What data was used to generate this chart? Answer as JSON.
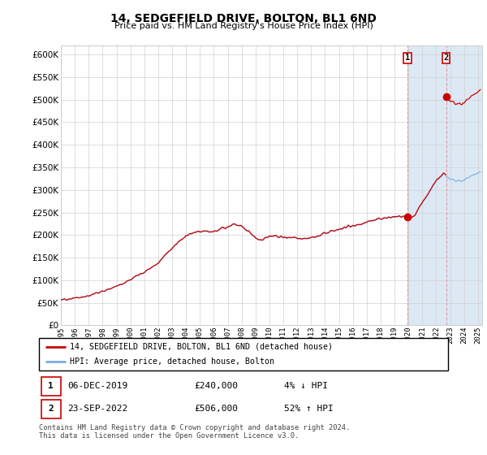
{
  "title": "14, SEDGEFIELD DRIVE, BOLTON, BL1 6ND",
  "subtitle": "Price paid vs. HM Land Registry's House Price Index (HPI)",
  "ylim": [
    0,
    620000
  ],
  "yticks": [
    0,
    50000,
    100000,
    150000,
    200000,
    250000,
    300000,
    350000,
    400000,
    450000,
    500000,
    550000,
    600000
  ],
  "xlim_start": 1995.5,
  "xlim_end": 2025.3,
  "xtick_years": [
    1995,
    1996,
    1997,
    1998,
    1999,
    2000,
    2001,
    2002,
    2003,
    2004,
    2005,
    2006,
    2007,
    2008,
    2009,
    2010,
    2011,
    2012,
    2013,
    2014,
    2015,
    2016,
    2017,
    2018,
    2019,
    2020,
    2021,
    2022,
    2023,
    2024,
    2025
  ],
  "background_color": "#ffffff",
  "plot_bg_color": "#ffffff",
  "grid_color": "#d0d0d0",
  "highlight_bg_color": "#dce9f5",
  "legend_label_red": "14, SEDGEFIELD DRIVE, BOLTON, BL1 6ND (detached house)",
  "legend_label_blue": "HPI: Average price, detached house, Bolton",
  "transaction1_date": "06-DEC-2019",
  "transaction1_price": "£240,000",
  "transaction1_hpi": "4% ↓ HPI",
  "transaction2_date": "23-SEP-2022",
  "transaction2_price": "£506,000",
  "transaction2_hpi": "52% ↑ HPI",
  "footer": "Contains HM Land Registry data © Crown copyright and database right 2024.\nThis data is licensed under the Open Government Licence v3.0.",
  "hpi_line_color": "#7aade0",
  "price_line_color": "#cc0000",
  "marker_color": "#cc0000",
  "highlight_start": 2019.92,
  "highlight_end": 2025.3,
  "transaction1_x": 2019.92,
  "transaction1_y": 240000,
  "transaction2_x": 2022.72,
  "transaction2_y": 506000,
  "hpi_base_x": 2019.92,
  "hpi_base_y": 240000
}
